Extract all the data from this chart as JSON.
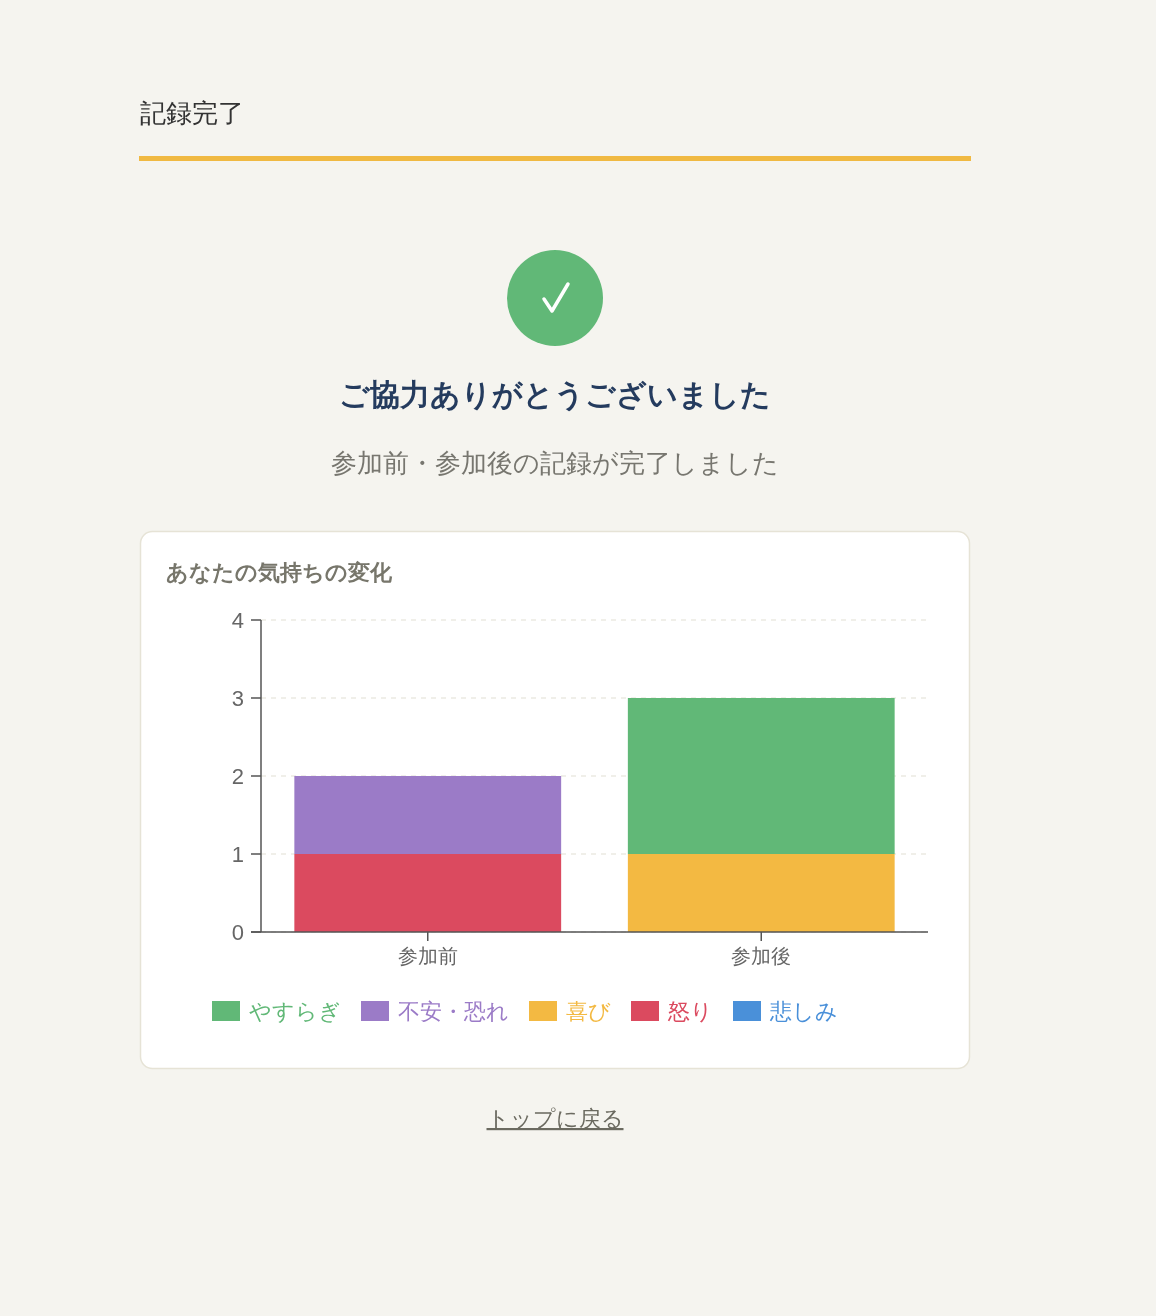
{
  "chart_data": {
    "type": "bar",
    "title": "あなたの気持ちの変化",
    "annotations": [
      "記録完了",
      "ご協力ありがとうございました",
      "参加前・参加後の記録が完了しました",
      "トップに戻る"
    ],
    "categories": [
      "参加前",
      "参加後"
    ],
    "stacked": true,
    "series": [
      {
        "name": "悲しみ",
        "color": "#4a90d9",
        "values": [
          0,
          0
        ]
      },
      {
        "name": "怒り",
        "color": "#db4a5f",
        "values": [
          1,
          0
        ]
      },
      {
        "name": "喜び",
        "color": "#f3b942",
        "values": [
          0,
          1
        ]
      },
      {
        "name": "不安・恐れ",
        "color": "#9b7bc7",
        "values": [
          1,
          0
        ]
      },
      {
        "name": "やすらぎ",
        "color": "#61b877",
        "values": [
          0,
          2
        ]
      }
    ],
    "ylim": [
      0,
      4
    ],
    "yticks": [
      0,
      1,
      2,
      3,
      4
    ],
    "grid": "y",
    "legend": "bottom"
  }
}
